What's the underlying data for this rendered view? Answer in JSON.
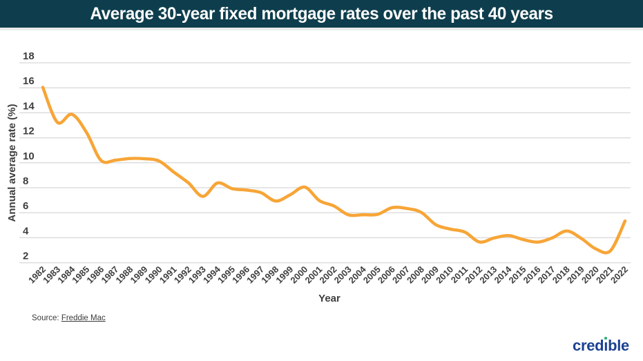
{
  "header": {
    "title": "Average 30-year fixed mortgage rates over the past 40 years",
    "background_color": "#0E3E4D"
  },
  "chart_data": {
    "type": "line",
    "title": "Average 30-year fixed mortgage rates over the past 40 years",
    "xlabel": "Year",
    "ylabel": "Annual average rate (%)",
    "x": [
      1982,
      1983,
      1984,
      1985,
      1986,
      1987,
      1988,
      1989,
      1990,
      1991,
      1992,
      1993,
      1994,
      1995,
      1996,
      1997,
      1998,
      1999,
      2000,
      2001,
      2002,
      2003,
      2004,
      2005,
      2006,
      2007,
      2008,
      2009,
      2010,
      2011,
      2012,
      2013,
      2014,
      2015,
      2016,
      2017,
      2018,
      2019,
      2020,
      2021,
      2022
    ],
    "series": [
      {
        "name": "30-year fixed mortgage rate",
        "color": "#F7A537",
        "values": [
          16.04,
          13.24,
          13.88,
          12.43,
          10.19,
          10.21,
          10.34,
          10.32,
          10.13,
          9.25,
          8.39,
          7.31,
          8.38,
          7.93,
          7.81,
          7.6,
          6.94,
          7.44,
          8.05,
          6.97,
          6.54,
          5.83,
          5.84,
          5.87,
          6.41,
          6.34,
          6.03,
          5.04,
          4.69,
          4.45,
          3.66,
          3.98,
          4.17,
          3.85,
          3.65,
          3.99,
          4.54,
          3.94,
          3.1,
          2.96,
          5.34
        ]
      }
    ],
    "yticks": [
      18,
      16,
      14,
      12,
      10,
      8,
      6,
      4,
      2
    ],
    "ylim": [
      2,
      18
    ],
    "grid": true,
    "gridline_color": "#DDDDDD",
    "tick_label_color": "#3E3E3E",
    "legend": false
  },
  "footer": {
    "source_label": "Source: ",
    "source_link": "Freddie Mac",
    "logo": {
      "full": "credible",
      "pre": "cred",
      "i_char": "ı",
      "post": "ble",
      "color": "#1B4193",
      "dot_color": "#35B17C"
    }
  }
}
